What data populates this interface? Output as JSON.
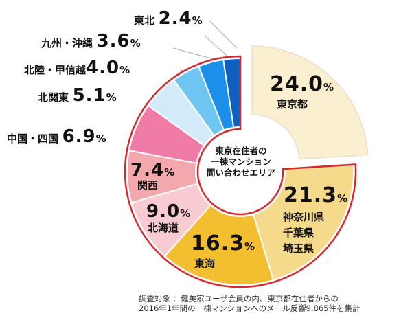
{
  "chart_data": {
    "type": "pie",
    "style": "donut",
    "title": "東京在住者の一棟マンション問い合わせエリア",
    "unit": "%",
    "slices": [
      {
        "label": "東京都",
        "value": 24.0,
        "color": "#fbefd2",
        "exploded": true
      },
      {
        "label": "神奈川県 千葉県 埼玉県",
        "value": 21.3,
        "color": "#f6da8c"
      },
      {
        "label": "東海",
        "value": 16.3,
        "color": "#f3bf30"
      },
      {
        "label": "北海道",
        "value": 9.0,
        "color": "#f7cbd1"
      },
      {
        "label": "関西",
        "value": 7.4,
        "color": "#f3a8ae"
      },
      {
        "label": "中国・四国",
        "value": 6.9,
        "color": "#f07ba6"
      },
      {
        "label": "北関東",
        "value": 5.1,
        "color": "#d2eaf9"
      },
      {
        "label": "北陸・甲信越",
        "value": 4.0,
        "color": "#6fc5f1"
      },
      {
        "label": "九州・沖縄",
        "value": 3.6,
        "color": "#1b8fe9"
      },
      {
        "label": "東北",
        "value": 2.4,
        "color": "#0f5fc0"
      }
    ],
    "outline_color": "#d9262c"
  },
  "labels": {
    "tokyo": {
      "value": "24.0",
      "region": "東京都"
    },
    "kanagawa": {
      "value": "21.3",
      "region1": "神奈川県",
      "region2": "千葉県",
      "region3": "埼玉県"
    },
    "tokai": {
      "value": "16.3",
      "region": "東海"
    },
    "hokkaido": {
      "value": "9.0",
      "region": "北海道"
    },
    "kansai": {
      "value": "7.4",
      "region": "関西"
    },
    "chugoku": {
      "value": "6.9",
      "region": "中国・四国"
    },
    "kitakanto": {
      "value": "5.1",
      "region": "北関東"
    },
    "hokuriku": {
      "value": "4.0",
      "region": "北陸・甲信越"
    },
    "kyushu": {
      "value": "3.6",
      "region": "九州・沖縄"
    },
    "tohoku": {
      "value": "2.4",
      "region": "東北"
    },
    "percent": "%"
  },
  "center": {
    "line1": "東京在住者の",
    "line2": "一棟マンション",
    "line3": "問い合わせエリア"
  },
  "note": {
    "line1": "調査対象 ：健美家ユーザ会員の内、東京都在住者からの",
    "line2": "2016年1年間の一棟マンションへのメール反響9,865件を集計"
  }
}
